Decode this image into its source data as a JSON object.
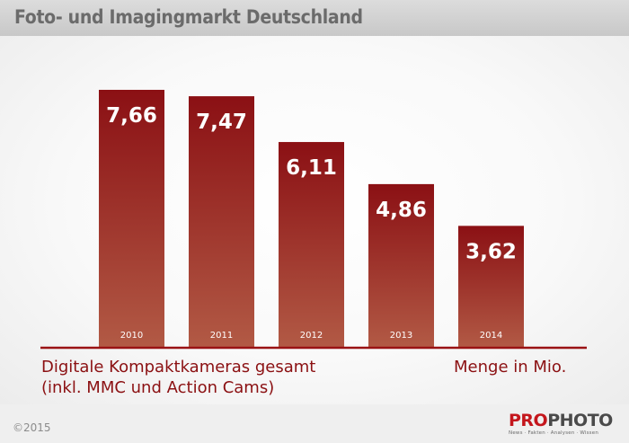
{
  "header": {
    "title": "Foto- und Imagingmarkt Deutschland"
  },
  "chart_data": {
    "type": "bar",
    "categories": [
      "2010",
      "2011",
      "2012",
      "2013",
      "2014"
    ],
    "values": [
      7.66,
      7.47,
      6.11,
      4.86,
      3.62
    ],
    "value_labels": [
      "7,66",
      "7,47",
      "6,11",
      "4,86",
      "3,62"
    ],
    "title": "",
    "xlabel": "",
    "ylabel": "",
    "ylim": [
      0,
      8.46
    ],
    "grid": false,
    "legend": "none",
    "bar_color_top": "#8b1014",
    "bar_color_bottom": "#b25a45"
  },
  "captions": {
    "left_line1": "Digitale Kompaktkameras gesamt",
    "left_line2": "(inkl. MMC und Action Cams)",
    "right": "Menge in Mio."
  },
  "footer": {
    "copyright": "©2015",
    "logo_pro": "PRO",
    "logo_photo": "PHOTO",
    "logo_tagline": "News · Fakten · Analysen · Wissen"
  },
  "colors": {
    "accent": "#8b1012",
    "axis": "#9a1214",
    "header_bg": "#cfcfcf"
  }
}
